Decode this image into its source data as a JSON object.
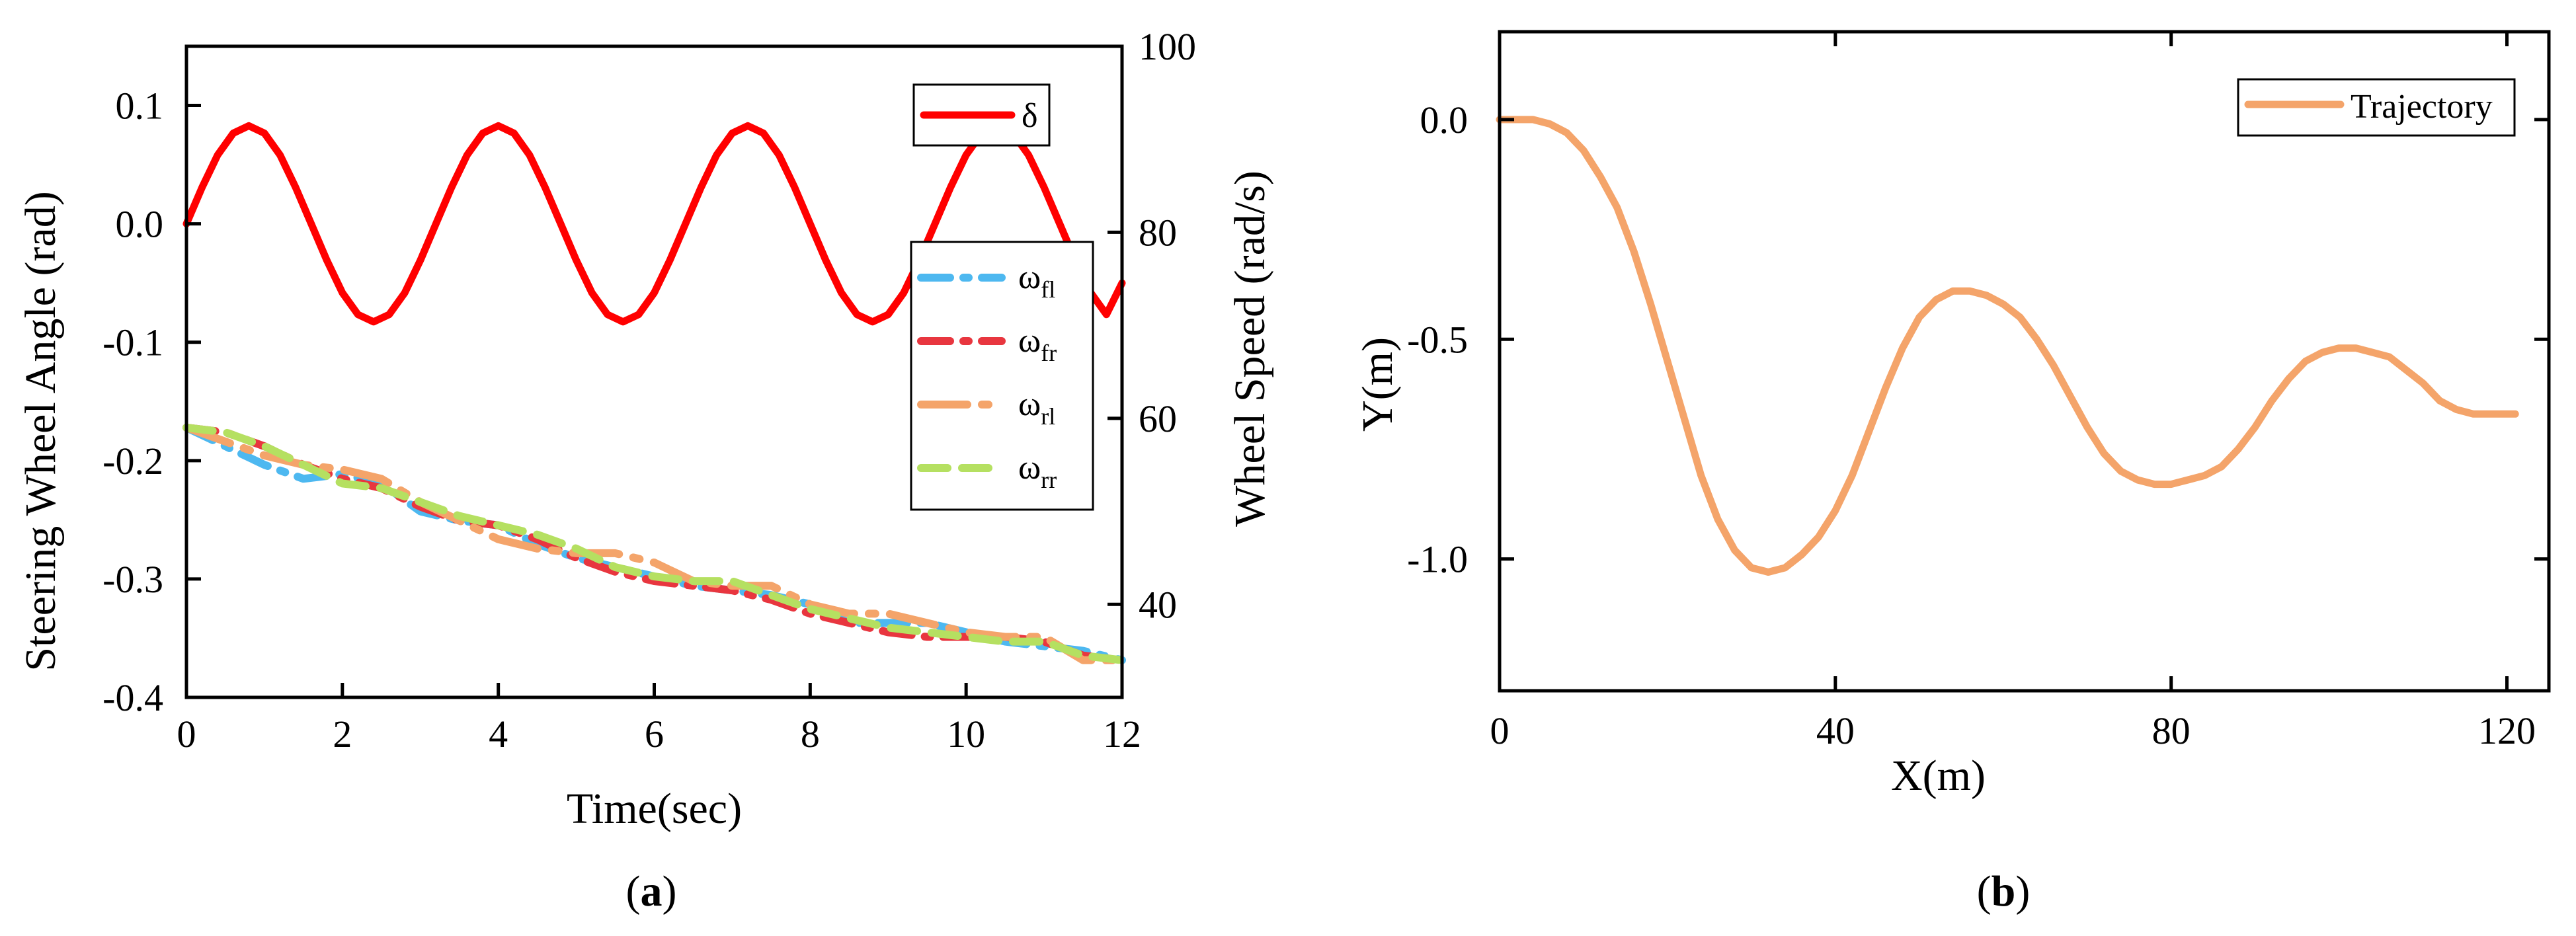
{
  "chart_data": [
    {
      "type": "line",
      "panel_label": "(a)",
      "panel_label_parts": {
        "open": "(",
        "letter": "a",
        "close": ")"
      },
      "xlabel": "Time(sec)",
      "ylabel_left": "Steering Wheel Angle (rad)",
      "ylabel_right": "Wheel Speed (rad/s)",
      "xlim": [
        0,
        12
      ],
      "ylim_left": [
        -0.4,
        0.15
      ],
      "ylim_right": [
        30,
        100
      ],
      "x_ticks": [
        0,
        2,
        4,
        6,
        8,
        10,
        12
      ],
      "x_tick_labels": [
        "0",
        "2",
        "4",
        "6",
        "8",
        "10",
        "12"
      ],
      "y_left_ticks": [
        0.1,
        0.0,
        -0.1,
        -0.2,
        -0.3,
        -0.4
      ],
      "y_left_tick_labels": [
        "0.1",
        "0.0",
        "-0.1",
        "-0.2",
        "-0.3",
        "-0.4"
      ],
      "y_right_ticks": [
        100,
        80,
        60,
        40
      ],
      "y_right_tick_labels": [
        "100",
        "80",
        "60",
        "40"
      ],
      "grid": false,
      "legends": [
        {
          "placement": "top-right",
          "entries": [
            {
              "series": "delta"
            }
          ]
        },
        {
          "placement": "right",
          "entries": [
            {
              "series": "w_fl"
            },
            {
              "series": "w_fr"
            },
            {
              "series": "w_rl"
            },
            {
              "series": "w_rr"
            }
          ]
        }
      ],
      "series": [
        {
          "id": "delta",
          "name": "δ",
          "axis": "left",
          "color": "#ff0000",
          "style": "solid",
          "x": [
            0,
            0.2,
            0.4,
            0.6,
            0.8,
            1.0,
            1.2,
            1.4,
            1.6,
            1.8,
            2.0,
            2.2,
            2.4,
            2.6,
            2.8,
            3.0,
            3.2,
            3.4,
            3.6,
            3.8,
            4.0,
            4.2,
            4.4,
            4.6,
            4.8,
            5.0,
            5.2,
            5.4,
            5.6,
            5.8,
            6.0,
            6.2,
            6.4,
            6.6,
            6.8,
            7.0,
            7.2,
            7.4,
            7.6,
            7.8,
            8.0,
            8.2,
            8.4,
            8.6,
            8.8,
            9.0,
            9.2,
            9.4,
            9.6,
            9.8,
            10.0,
            10.2,
            10.4,
            10.6,
            10.8,
            11.0,
            11.2,
            11.4,
            11.6,
            11.8,
            12.0
          ],
          "y": [
            0.0,
            0.0308,
            0.0582,
            0.0766,
            0.0828,
            0.0766,
            0.0582,
            0.0308,
            0.0,
            -0.0308,
            -0.0582,
            -0.0766,
            -0.0828,
            -0.0766,
            -0.0582,
            -0.0308,
            0.0,
            0.0308,
            0.0582,
            0.0766,
            0.0828,
            0.0766,
            0.0582,
            0.0308,
            0.0,
            -0.0308,
            -0.0582,
            -0.0766,
            -0.0828,
            -0.0766,
            -0.0582,
            -0.0308,
            0.0,
            0.0308,
            0.0582,
            0.0766,
            0.0828,
            0.0766,
            0.0582,
            0.0308,
            0.0,
            -0.0308,
            -0.0582,
            -0.0766,
            -0.0828,
            -0.0766,
            -0.0582,
            -0.0308,
            0.0,
            0.0308,
            0.0582,
            0.0766,
            0.0828,
            0.0766,
            0.0582,
            0.0308,
            0.0,
            -0.0308,
            -0.0582,
            -0.0766,
            -0.05
          ]
        },
        {
          "id": "w_fl",
          "name": "ω",
          "sub": "fl",
          "axis": "right",
          "color": "#4db8f0",
          "style": "dashdot",
          "x": [
            0,
            0.5,
            1.0,
            1.5,
            2.0,
            2.5,
            3.0,
            3.5,
            4.0,
            4.5,
            5.0,
            5.5,
            6.0,
            6.5,
            7.0,
            7.5,
            8.0,
            8.5,
            9.0,
            9.5,
            10.0,
            10.5,
            11.0,
            11.5,
            12.0
          ],
          "y": [
            59.0,
            57.0,
            55.0,
            53.5,
            54.0,
            53.0,
            50.0,
            49.0,
            48.5,
            46.5,
            45.0,
            44.0,
            43.0,
            42.0,
            41.5,
            41.0,
            40.0,
            38.0,
            38.0,
            38.0,
            37.0,
            36.0,
            35.5,
            35.0,
            34.0
          ]
        },
        {
          "id": "w_fr",
          "name": "ω",
          "sub": "fr",
          "axis": "right",
          "color": "#e8363f",
          "style": "dashdot",
          "x": [
            0,
            0.5,
            1.0,
            1.5,
            2.0,
            2.5,
            3.0,
            3.5,
            4.0,
            4.5,
            5.0,
            5.5,
            6.0,
            6.5,
            7.0,
            7.5,
            8.0,
            8.5,
            9.0,
            9.5,
            10.0,
            10.5,
            11.0,
            11.5,
            12.0
          ],
          "y": [
            59.0,
            58.5,
            57.0,
            55.0,
            53.5,
            52.5,
            50.5,
            49.0,
            48.5,
            47.0,
            45.0,
            43.5,
            42.5,
            42.0,
            41.5,
            40.5,
            39.0,
            38.0,
            37.0,
            36.5,
            36.5,
            36.5,
            36.0,
            34.5,
            34.0
          ]
        },
        {
          "id": "w_rl",
          "name": "ω",
          "sub": "rl",
          "axis": "right",
          "color": "#f4a46a",
          "style": "longdashdot",
          "x": [
            0,
            0.5,
            1.0,
            1.5,
            2.0,
            2.5,
            3.0,
            3.5,
            4.0,
            4.5,
            5.0,
            5.5,
            6.0,
            6.5,
            7.0,
            7.5,
            8.0,
            8.5,
            9.0,
            9.5,
            10.0,
            10.5,
            11.0,
            11.5,
            12.0
          ],
          "y": [
            59.0,
            57.5,
            56.0,
            55.0,
            54.5,
            53.5,
            51.0,
            49.0,
            47.0,
            46.0,
            45.5,
            45.5,
            44.5,
            42.5,
            42.0,
            42.0,
            40.0,
            39.0,
            39.0,
            38.0,
            37.0,
            36.5,
            36.5,
            34.0,
            34.0
          ]
        },
        {
          "id": "w_rr",
          "name": "ω",
          "sub": "rr",
          "axis": "right",
          "color": "#b5e061",
          "style": "dashed",
          "x": [
            0,
            0.5,
            1.0,
            1.5,
            2.0,
            2.5,
            3.0,
            3.5,
            4.0,
            4.5,
            5.0,
            5.5,
            6.0,
            6.5,
            7.0,
            7.5,
            8.0,
            8.5,
            9.0,
            9.5,
            10.0,
            10.5,
            11.0,
            11.5,
            12.0
          ],
          "y": [
            59.0,
            58.5,
            57.0,
            55.0,
            53.0,
            52.5,
            51.0,
            49.5,
            48.5,
            47.5,
            46.0,
            44.0,
            43.0,
            42.5,
            42.5,
            41.0,
            39.5,
            38.5,
            37.5,
            37.0,
            36.5,
            36.0,
            36.0,
            34.5,
            34.0
          ]
        }
      ]
    },
    {
      "type": "line",
      "panel_label": "(b)",
      "panel_label_parts": {
        "open": "(",
        "letter": "b",
        "close": ")"
      },
      "xlabel": "X(m)",
      "ylabel": "Y(m)",
      "xlim": [
        0,
        125
      ],
      "ylim": [
        -1.3,
        0.2
      ],
      "x_ticks": [
        0,
        40,
        80,
        120
      ],
      "x_tick_labels": [
        "0",
        "40",
        "80",
        "120"
      ],
      "y_ticks": [
        0.0,
        -0.5,
        -1.0
      ],
      "y_tick_labels": [
        "0.0",
        "-0.5",
        "-1.0"
      ],
      "grid": false,
      "legend": {
        "placement": "top-right"
      },
      "series": [
        {
          "id": "trajectory",
          "name": "Trajectory",
          "color": "#f4a46a",
          "style": "solid",
          "x": [
            0,
            2,
            4,
            6,
            8,
            10,
            12,
            14,
            16,
            18,
            20,
            22,
            24,
            26,
            28,
            30,
            32,
            34,
            36,
            38,
            40,
            42,
            44,
            46,
            48,
            50,
            52,
            54,
            56,
            58,
            60,
            62,
            64,
            66,
            68,
            70,
            72,
            74,
            76,
            78,
            80,
            82,
            84,
            86,
            88,
            90,
            92,
            94,
            96,
            98,
            100,
            102,
            104,
            106,
            108,
            110,
            112,
            114,
            116,
            118,
            120,
            121
          ],
          "y": [
            0.0,
            0.0,
            0.0,
            -0.01,
            -0.03,
            -0.07,
            -0.13,
            -0.2,
            -0.3,
            -0.42,
            -0.55,
            -0.68,
            -0.81,
            -0.91,
            -0.98,
            -1.02,
            -1.03,
            -1.02,
            -0.99,
            -0.95,
            -0.89,
            -0.81,
            -0.71,
            -0.61,
            -0.52,
            -0.45,
            -0.41,
            -0.39,
            -0.39,
            -0.4,
            -0.42,
            -0.45,
            -0.5,
            -0.56,
            -0.63,
            -0.7,
            -0.76,
            -0.8,
            -0.82,
            -0.83,
            -0.83,
            -0.82,
            -0.81,
            -0.79,
            -0.75,
            -0.7,
            -0.64,
            -0.59,
            -0.55,
            -0.53,
            -0.52,
            -0.52,
            -0.53,
            -0.54,
            -0.57,
            -0.6,
            -0.64,
            -0.66,
            -0.67,
            -0.67,
            -0.67,
            -0.67
          ]
        }
      ]
    }
  ]
}
